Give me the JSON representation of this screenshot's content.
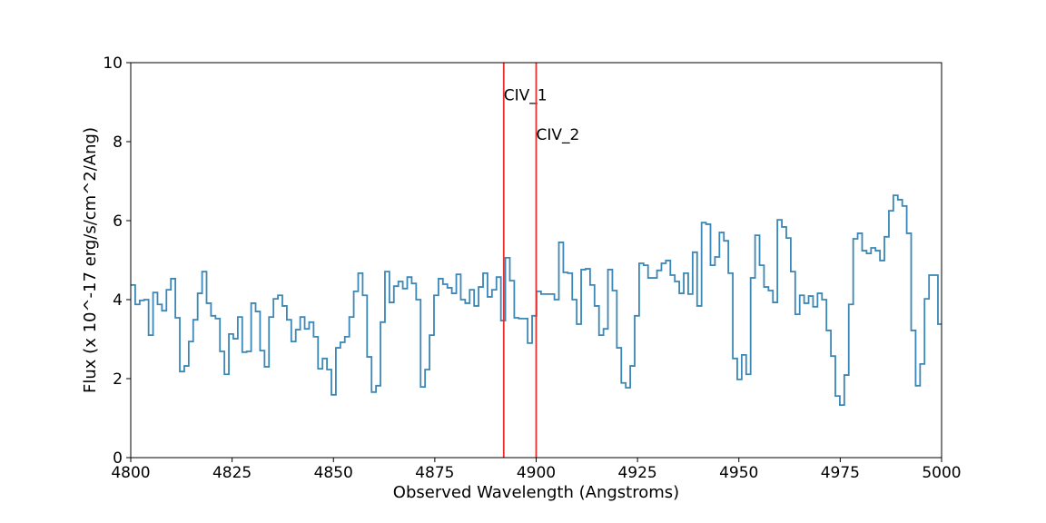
{
  "chart_data": {
    "type": "step",
    "xlabel": "Observed Wavelength (Angstroms)",
    "ylabel": "Flux (x 10^-17 erg/s/cm^2/Ang)",
    "xlim": [
      4800,
      5000
    ],
    "ylim": [
      0,
      10
    ],
    "xticks": [
      4800,
      4825,
      4850,
      4875,
      4900,
      4925,
      4950,
      4975,
      5000
    ],
    "yticks": [
      0,
      2,
      4,
      6,
      8,
      10
    ],
    "color": "#3a87b8",
    "x": [
      4800,
      4801.1,
      4802.2,
      4803.3,
      4804.4,
      4805.5,
      4806.6,
      4807.7,
      4808.8,
      4809.9,
      4811,
      4812.1,
      4813.2,
      4814.3,
      4815.4,
      4816.5,
      4817.6,
      4818.7,
      4819.8,
      4820.9,
      4822,
      4823.1,
      4824.2,
      4825.3,
      4826.4,
      4827.5,
      4828.6,
      4829.7,
      4830.8,
      4831.9,
      4833,
      4834.1,
      4835.2,
      4836.3,
      4837.4,
      4838.5,
      4839.6,
      4840.7,
      4841.8,
      4842.9,
      4844,
      4845.1,
      4846.2,
      4847.3,
      4848.4,
      4849.5,
      4850.6,
      4851.7,
      4852.8,
      4853.9,
      4855,
      4856.1,
      4857.2,
      4858.3,
      4859.4,
      4860.5,
      4861.6,
      4862.7,
      4863.8,
      4864.9,
      4866,
      4867.1,
      4868.2,
      4869.3,
      4870.4,
      4871.5,
      4872.6,
      4873.7,
      4874.8,
      4875.9,
      4877,
      4878.1,
      4879.2,
      4880.3,
      4881.4,
      4882.5,
      4883.6,
      4884.7,
      4885.8,
      4886.9,
      4888,
      4889.1,
      4890.2,
      4891.3,
      4892.4,
      4893.5,
      4894.6,
      4895.7,
      4896.8,
      4897.9,
      4899,
      4900.1,
      4901.2,
      4902.3,
      4903.4,
      4904.5,
      4905.6,
      4906.7,
      4907.8,
      4908.9,
      4910,
      4911.1,
      4912.2,
      4913.3,
      4914.4,
      4915.5,
      4916.6,
      4917.7,
      4918.8,
      4919.9,
      4921,
      4922.1,
      4923.2,
      4924.3,
      4925.4,
      4926.5,
      4927.6,
      4928.7,
      4929.8,
      4930.9,
      4932,
      4933.1,
      4934.2,
      4935.3,
      4936.4,
      4937.5,
      4938.6,
      4939.7,
      4940.8,
      4941.9,
      4943,
      4944.1,
      4945.2,
      4946.3,
      4947.4,
      4948.5,
      4949.6,
      4950.7,
      4951.8,
      4952.9,
      4954,
      4955.1,
      4956.2,
      4957.3,
      4958.4,
      4959.5,
      4960.6,
      4961.7,
      4962.8,
      4963.9,
      4965,
      4966.1,
      4967.2,
      4968.3,
      4969.4,
      4970.5,
      4971.6,
      4972.7,
      4973.8,
      4974.9,
      4976,
      4977.1,
      4978.2,
      4979.3,
      4980.4,
      4981.5,
      4982.6,
      4983.7,
      4984.8,
      4985.9,
      4987,
      4988.1,
      4989.2,
      4990.3,
      4991.4,
      4992.5,
      4993.6,
      4994.7,
      4995.8,
      4996.9,
      4998,
      4999.1
    ],
    "values": [
      4.37,
      3.88,
      3.98,
      4.0,
      3.1,
      4.18,
      3.88,
      3.72,
      4.25,
      4.53,
      3.54,
      2.18,
      2.32,
      2.94,
      3.49,
      4.16,
      4.71,
      3.91,
      3.59,
      3.52,
      2.69,
      2.11,
      3.13,
      3.01,
      3.56,
      2.67,
      2.69,
      3.91,
      3.7,
      2.71,
      2.3,
      3.56,
      4.02,
      4.11,
      3.84,
      3.49,
      2.94,
      3.24,
      3.56,
      3.26,
      3.43,
      3.06,
      2.25,
      2.51,
      2.23,
      1.59,
      2.78,
      2.92,
      3.06,
      3.56,
      4.21,
      4.67,
      4.11,
      2.55,
      1.66,
      1.82,
      3.43,
      4.71,
      3.93,
      4.34,
      4.46,
      4.28,
      4.57,
      4.41,
      4.0,
      1.79,
      2.23,
      3.1,
      4.11,
      4.53,
      4.39,
      4.3,
      4.16,
      4.64,
      4.0,
      3.91,
      4.25,
      3.84,
      4.32,
      4.67,
      4.07,
      4.25,
      4.57,
      3.47,
      5.06,
      4.48,
      3.54,
      3.52,
      3.52,
      2.9,
      3.59,
      4.21,
      4.14,
      4.14,
      4.14,
      4.0,
      5.45,
      4.69,
      4.67,
      4.0,
      3.38,
      4.76,
      4.78,
      4.37,
      3.84,
      3.1,
      3.26,
      4.76,
      4.23,
      2.78,
      1.89,
      1.77,
      2.32,
      3.59,
      4.92,
      4.87,
      4.55,
      4.55,
      4.74,
      4.92,
      4.99,
      4.62,
      4.46,
      4.16,
      4.67,
      4.14,
      5.2,
      3.84,
      5.95,
      5.91,
      4.87,
      5.08,
      5.7,
      5.49,
      4.67,
      2.51,
      1.98,
      2.6,
      2.11,
      4.55,
      5.63,
      4.87,
      4.32,
      4.23,
      3.93,
      6.02,
      5.84,
      5.56,
      4.71,
      3.63,
      4.11,
      3.91,
      4.09,
      3.82,
      4.16,
      4.0,
      3.22,
      2.57,
      1.56,
      1.33,
      2.09,
      3.88,
      5.54,
      5.68,
      5.24,
      5.17,
      5.31,
      5.24,
      4.99,
      5.59,
      6.25,
      6.64,
      6.53,
      6.37,
      5.68,
      3.22,
      1.82,
      2.37,
      4.02,
      4.62,
      4.62,
      3.38
    ],
    "vlines": [
      {
        "x": 4892,
        "label": "CIV_1",
        "label_y": 9,
        "color": "#e8302e"
      },
      {
        "x": 4900,
        "label": "CIV_2",
        "label_y": 8,
        "color": "#e8302e"
      }
    ]
  }
}
